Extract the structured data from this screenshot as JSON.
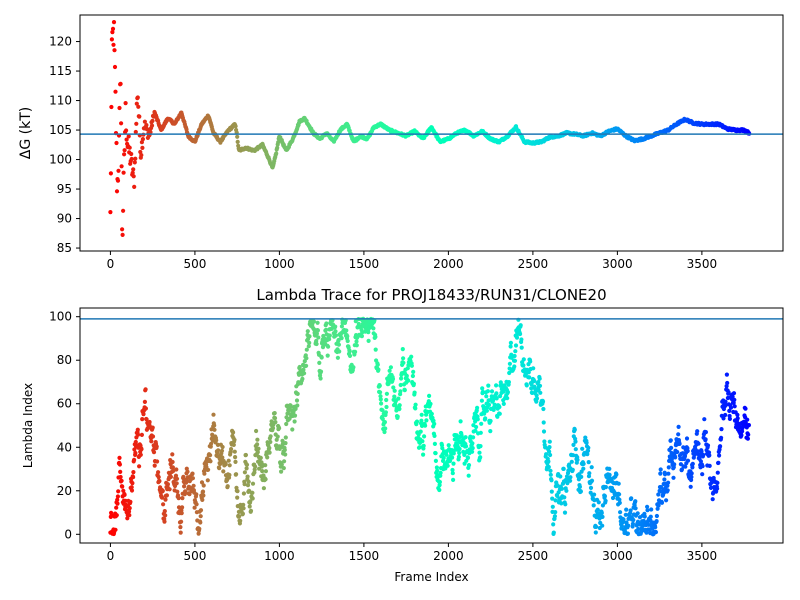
{
  "chart_data": [
    {
      "type": "scatter",
      "title": "",
      "xlabel": "",
      "ylabel": "ΔG (kT)",
      "xlim": [
        -180,
        3980
      ],
      "ylim": [
        84.5,
        124.5
      ],
      "xticks": [
        0,
        500,
        1000,
        1500,
        2000,
        2500,
        3000,
        3500
      ],
      "yticks": [
        85,
        90,
        95,
        100,
        105,
        110,
        115,
        120
      ],
      "hline": 104.3,
      "hline_color": "#1f77b4",
      "colormap": "rainbow",
      "grid": false,
      "series": [
        {
          "x": [
            0,
            10,
            20,
            30,
            40,
            50,
            60,
            70,
            80,
            90,
            100,
            120,
            140,
            160,
            180,
            200,
            230,
            260,
            300,
            340,
            380,
            420,
            460,
            500,
            540,
            580,
            610,
            650,
            700,
            740,
            760,
            800,
            850,
            900,
            940,
            960,
            980,
            1000,
            1040,
            1080,
            1120,
            1150,
            1200,
            1240,
            1280,
            1320,
            1360,
            1400,
            1440,
            1480,
            1520,
            1560,
            1600,
            1650,
            1700,
            1750,
            1800,
            1850,
            1900,
            1950,
            2000,
            2050,
            2100,
            2150,
            2200,
            2250,
            2300,
            2350,
            2400,
            2450,
            2500,
            2550,
            2600,
            2650,
            2700,
            2750,
            2800,
            2850,
            2900,
            2950,
            3000,
            3050,
            3100,
            3150,
            3200,
            3250,
            3300,
            3350,
            3400,
            3450,
            3500,
            3550,
            3600,
            3650,
            3700,
            3750,
            3780
          ],
          "y": [
            90.0,
            120.0,
            122.0,
            110.0,
            95.0,
            101.0,
            115.0,
            86.0,
            98.0,
            108.0,
            103.0,
            100.0,
            96.0,
            112.0,
            101.0,
            106.0,
            104.0,
            108.0,
            105.0,
            107.0,
            106.0,
            108.0,
            104.0,
            103.0,
            106.0,
            107.5,
            104.5,
            103.0,
            105.0,
            106.0,
            101.5,
            102.0,
            101.5,
            102.5,
            100.0,
            98.5,
            101.0,
            104.0,
            101.5,
            103.5,
            106.5,
            107.0,
            104.5,
            103.5,
            104.5,
            103.0,
            105.0,
            106.0,
            103.0,
            104.0,
            103.5,
            105.5,
            106.0,
            105.0,
            104.5,
            104.0,
            104.8,
            103.5,
            105.5,
            103.0,
            103.5,
            104.5,
            105.0,
            104.0,
            104.8,
            103.5,
            103.0,
            104.0,
            105.5,
            103.0,
            102.8,
            103.0,
            103.8,
            104.0,
            104.5,
            104.3,
            104.0,
            104.5,
            104.0,
            104.8,
            105.2,
            104.0,
            103.2,
            103.5,
            104.0,
            104.5,
            105.0,
            106.0,
            106.8,
            106.2,
            106.0,
            106.0,
            106.0,
            105.2,
            105.0,
            105.0,
            104.5
          ]
        }
      ]
    },
    {
      "type": "scatter",
      "title": "Lambda Trace for PROJ18433/RUN31/CLONE20",
      "xlabel": "Frame Index",
      "ylabel": "Lambda Index",
      "xlim": [
        -180,
        3980
      ],
      "ylim": [
        -4,
        104
      ],
      "xticks": [
        0,
        500,
        1000,
        1500,
        2000,
        2500,
        3000,
        3500
      ],
      "yticks": [
        0,
        20,
        40,
        60,
        80,
        100
      ],
      "hline": 99,
      "hline_color": "#1f77b4",
      "colormap": "rainbow",
      "grid": false,
      "point_count": 3780,
      "lambda_range": [
        0,
        99
      ]
    }
  ]
}
